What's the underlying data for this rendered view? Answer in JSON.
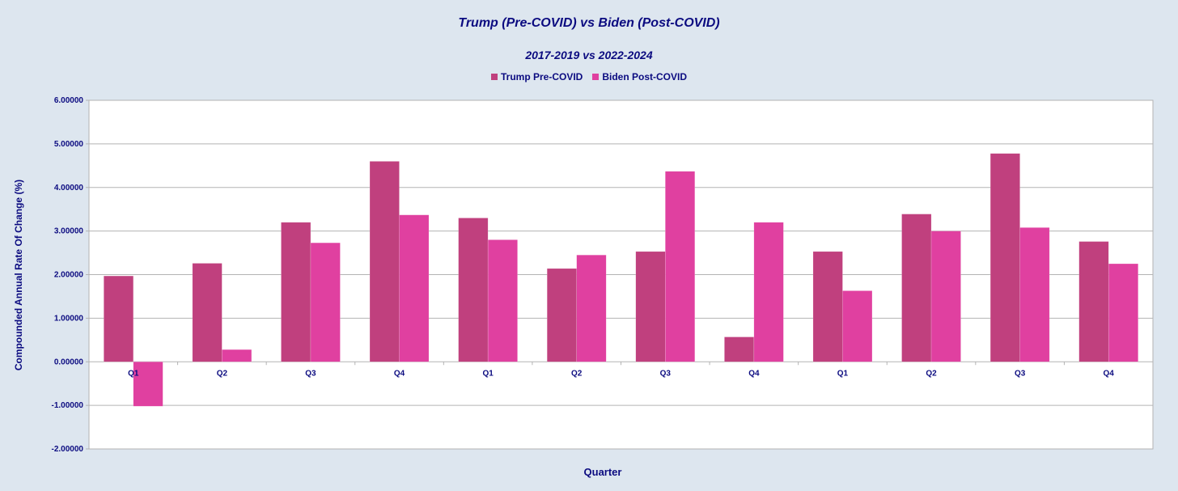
{
  "chart_data": {
    "type": "bar",
    "title": "Trump (Pre-COVID) vs Biden (Post-COVID)",
    "subtitle": "2017-2019 vs 2022-2024",
    "xlabel": "Quarter",
    "ylabel": "Compounded Annual Rate Of Change (%)",
    "ylim": [
      -2,
      6
    ],
    "yticks": [
      "6.00000",
      "5.00000",
      "4.00000",
      "3.00000",
      "2.00000",
      "1.00000",
      "0.00000",
      "-1.00000",
      "-2.00000"
    ],
    "ytick_values": [
      6,
      5,
      4,
      3,
      2,
      1,
      0,
      -1,
      -2
    ],
    "categories": [
      "Q1",
      "Q2",
      "Q3",
      "Q4",
      "Q1",
      "Q2",
      "Q3",
      "Q4",
      "Q1",
      "Q2",
      "Q3",
      "Q4"
    ],
    "series": [
      {
        "name": "Trump Pre-COVID",
        "color": "#c0407e",
        "values": [
          1.97,
          2.26,
          3.2,
          4.6,
          3.3,
          2.14,
          2.53,
          0.57,
          2.53,
          3.39,
          4.78,
          2.76
        ]
      },
      {
        "name": "Biden Post-COVID",
        "color": "#e040a0",
        "values": [
          -1.02,
          0.28,
          2.73,
          3.37,
          2.8,
          2.45,
          4.37,
          3.2,
          1.63,
          3.0,
          3.08,
          2.25
        ]
      }
    ],
    "grid": true,
    "legend_position": "top-center",
    "plot_background": "#ffffff",
    "page_background": "#dde6ef",
    "text_color": "#0b0b80"
  }
}
